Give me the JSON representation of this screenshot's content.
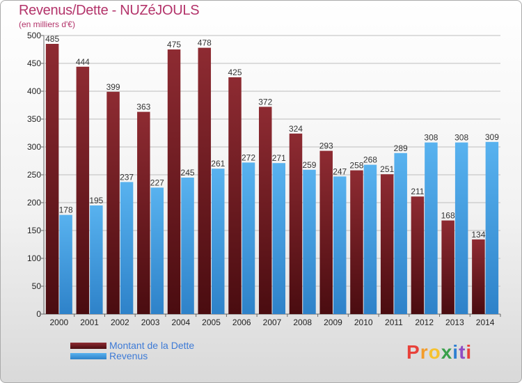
{
  "chart_data": {
    "type": "bar",
    "title": "Revenus/Dette - NUZéJOULS",
    "subtitle": "(en milliers d'€)",
    "categories": [
      "2000",
      "2001",
      "2002",
      "2003",
      "2004",
      "2005",
      "2006",
      "2007",
      "2008",
      "2009",
      "2010",
      "2011",
      "2012",
      "2013",
      "2014"
    ],
    "series": [
      {
        "name": "Montant de la Dette",
        "color": "#7a1f25",
        "values": [
          485,
          444,
          399,
          363,
          475,
          478,
          425,
          372,
          324,
          293,
          258,
          251,
          211,
          168,
          134
        ]
      },
      {
        "name": "Revenus",
        "color": "#4aa3e6",
        "values": [
          178,
          195,
          237,
          227,
          245,
          261,
          272,
          271,
          259,
          247,
          268,
          289,
          308,
          308,
          309
        ]
      }
    ],
    "ylim": [
      0,
      500
    ],
    "yticks": [
      0,
      50,
      100,
      150,
      200,
      250,
      300,
      350,
      400,
      450,
      500
    ],
    "grid": true,
    "legend_position": "bottom-left"
  },
  "logo": {
    "text": "Proxiti",
    "colors": [
      "#e8413a",
      "#f39c2b",
      "#f6c22f",
      "#3aa04b",
      "#2f7fd1",
      "#8f4bc4",
      "#e8413a"
    ]
  }
}
